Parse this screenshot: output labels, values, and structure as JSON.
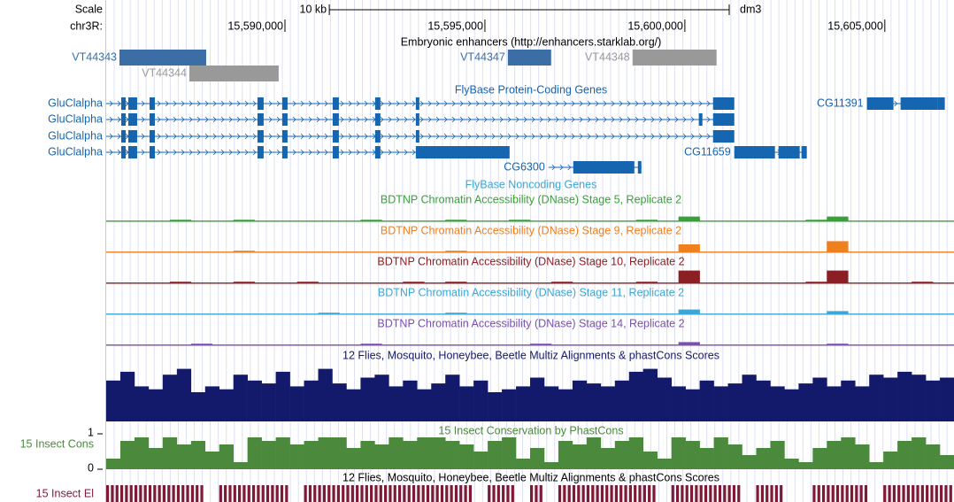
{
  "browser": {
    "xlim": [
      15585530,
      15606730
    ],
    "scale": {
      "label": "Scale",
      "bar": {
        "value": 10000,
        "label": "10 kb"
      },
      "assembly": "dm3"
    },
    "chrom": "chr3R:",
    "xticks": [
      {
        "value": 15590000,
        "label": "15,590,000"
      },
      {
        "value": 15595000,
        "label": "15,595,000"
      },
      {
        "value": 15600000,
        "label": "15,600,000"
      },
      {
        "value": 15605000,
        "label": "15,605,000"
      }
    ],
    "enhancers": {
      "title": "Embryonic enhancers (http://enhancers.starklab.org/)",
      "features": [
        {
          "name": "VT44343",
          "start": 15585862,
          "end": 15588030,
          "color": "#3a6ea5"
        },
        {
          "name": "VT44344",
          "start": 15587609,
          "end": 15589843,
          "color": "#999999"
        },
        {
          "name": "VT44347",
          "start": 15595573,
          "end": 15596656,
          "color": "#3a6ea5"
        },
        {
          "name": "VT44348",
          "start": 15598692,
          "end": 15600793,
          "color": "#999999"
        }
      ]
    },
    "genes": {
      "title": "FlyBase Protein-Coding Genes",
      "color": "#1565b0",
      "features": [
        {
          "name": "GluClalpha",
          "start": 15585530,
          "end": 15601236,
          "exons": [
            [
              15585906,
              15586017
            ],
            [
              15586083,
              15586304
            ],
            [
              15586614,
              15586747
            ],
            [
              15589313,
              15589467
            ],
            [
              15589932,
              15590065
            ],
            [
              15591193,
              15591348
            ],
            [
              15592254,
              15592387
            ],
            [
              15593272,
              15593361
            ],
            [
              15600705,
              15601236
            ]
          ]
        },
        {
          "name": "GluClalpha",
          "start": 15585530,
          "end": 15601236,
          "exons": [
            [
              15585906,
              15586017
            ],
            [
              15586083,
              15586304
            ],
            [
              15586614,
              15586747
            ],
            [
              15589313,
              15589467
            ],
            [
              15589932,
              15590065
            ],
            [
              15591193,
              15591348
            ],
            [
              15592254,
              15592387
            ],
            [
              15593272,
              15593361
            ],
            [
              15600350,
              15600439
            ],
            [
              15600705,
              15601236
            ]
          ]
        },
        {
          "name": "GluClalpha",
          "start": 15585530,
          "end": 15601236,
          "exons": [
            [
              15585906,
              15586017
            ],
            [
              15586083,
              15586304
            ],
            [
              15586614,
              15586747
            ],
            [
              15589313,
              15589467
            ],
            [
              15589932,
              15590065
            ],
            [
              15591193,
              15591348
            ],
            [
              15592254,
              15592387
            ],
            [
              15593272,
              15593361
            ],
            [
              15600705,
              15601236
            ]
          ]
        },
        {
          "name": "GluClalpha",
          "start": 15585530,
          "end": 15595617,
          "exons": [
            [
              15585906,
              15586017
            ],
            [
              15586083,
              15586304
            ],
            [
              15586614,
              15586747
            ],
            [
              15589313,
              15589467
            ],
            [
              15589932,
              15590065
            ],
            [
              15591193,
              15591348
            ],
            [
              15592254,
              15592387
            ],
            [
              15593272,
              15595617
            ]
          ]
        },
        {
          "name": "CG11391",
          "start": 15604553,
          "end": 15606500,
          "exons": [
            [
              15604553,
              15605216
            ],
            [
              15605394,
              15606323
            ],
            [
              15606323,
              15606500
            ]
          ]
        },
        {
          "name": "CG6300",
          "start": 15596590,
          "end": 15598913,
          "exons": [
            [
              15597209,
              15598736
            ],
            [
              15598825,
              15598913
            ]
          ]
        },
        {
          "name": "CG11659",
          "start": 15601236,
          "end": 15603049,
          "exons": [
            [
              15601236,
              15602253
            ],
            [
              15602341,
              15602872
            ],
            [
              15602916,
              15603049
            ]
          ]
        }
      ]
    },
    "noncoding": {
      "title": "FlyBase Noncoding Genes"
    },
    "dnase": [
      {
        "name": "BDTNP Chromatin Accessibility (DNase) Stage 5, Replicate 2",
        "color": "#3aa03a",
        "values": [
          0.05,
          0.05,
          0.05,
          0.1,
          0.05,
          0.05,
          0.1,
          0.05,
          0.05,
          0.05,
          0.05,
          0.05,
          0.1,
          0.05,
          0.05,
          0.05,
          0.1,
          0.05,
          0.05,
          0.1,
          0.05,
          0.05,
          0.05,
          0.05,
          0.05,
          0.1,
          0.05,
          0.3,
          0.05,
          0.05,
          0.05,
          0.05,
          0.05,
          0.1,
          0.3,
          0.05,
          0.05,
          0.05,
          0.05,
          0.05
        ]
      },
      {
        "name": "BDTNP Chromatin Accessibility (DNase) Stage 9, Replicate 2",
        "color": "#f07f1e",
        "values": [
          0.05,
          0.05,
          0.05,
          0.05,
          0.05,
          0.05,
          0.1,
          0.05,
          0.05,
          0.05,
          0.05,
          0.05,
          0.05,
          0.05,
          0.05,
          0.05,
          0.1,
          0.05,
          0.05,
          0.05,
          0.05,
          0.05,
          0.05,
          0.05,
          0.05,
          0.05,
          0.05,
          0.5,
          0.05,
          0.05,
          0.05,
          0.05,
          0.05,
          0.05,
          0.7,
          0.05,
          0.05,
          0.05,
          0.05,
          0.05
        ]
      },
      {
        "name": "BDTNP Chromatin Accessibility (DNase) Stage 10, Replicate 2",
        "color": "#8b1f23",
        "values": [
          0.05,
          0.05,
          0.05,
          0.1,
          0.05,
          0.05,
          0.1,
          0.05,
          0.05,
          0.1,
          0.05,
          0.05,
          0.05,
          0.05,
          0.1,
          0.05,
          0.1,
          0.05,
          0.05,
          0.05,
          0.05,
          0.1,
          0.05,
          0.05,
          0.05,
          0.1,
          0.05,
          0.8,
          0.05,
          0.05,
          0.05,
          0.05,
          0.05,
          0.1,
          0.8,
          0.05,
          0.05,
          0.05,
          0.1,
          0.05
        ]
      },
      {
        "name": "BDTNP Chromatin Accessibility (DNase) Stage 11, Replicate 2",
        "color": "#3ca6d6",
        "values": [
          0.05,
          0.05,
          0.05,
          0.05,
          0.05,
          0.05,
          0.05,
          0.05,
          0.05,
          0.05,
          0.1,
          0.05,
          0.05,
          0.05,
          0.05,
          0.05,
          0.1,
          0.05,
          0.05,
          0.05,
          0.05,
          0.05,
          0.05,
          0.05,
          0.05,
          0.05,
          0.05,
          0.3,
          0.05,
          0.05,
          0.05,
          0.05,
          0.05,
          0.05,
          0.2,
          0.05,
          0.05,
          0.05,
          0.05,
          0.05
        ]
      },
      {
        "name": "BDTNP Chromatin Accessibility (DNase) Stage 14, Replicate 2",
        "color": "#7a4fae",
        "values": [
          0.05,
          0.05,
          0.05,
          0.05,
          0.1,
          0.05,
          0.05,
          0.05,
          0.05,
          0.05,
          0.05,
          0.05,
          0.1,
          0.05,
          0.05,
          0.05,
          0.05,
          0.05,
          0.05,
          0.05,
          0.1,
          0.05,
          0.05,
          0.05,
          0.05,
          0.05,
          0.05,
          0.2,
          0.05,
          0.05,
          0.05,
          0.05,
          0.05,
          0.05,
          0.1,
          0.05,
          0.05,
          0.05,
          0.05,
          0.05
        ]
      }
    ],
    "multiz": {
      "title": "12 Flies, Mosquito, Honeybee, Beetle Multiz Alignments & phastCons Scores",
      "color": "#141a6b",
      "values": [
        0.7,
        0.85,
        0.6,
        0.55,
        0.8,
        0.9,
        0.5,
        0.6,
        0.55,
        0.8,
        0.7,
        0.65,
        0.85,
        0.6,
        0.7,
        0.9,
        0.65,
        0.55,
        0.75,
        0.8,
        0.6,
        0.7,
        0.55,
        0.65,
        0.8,
        0.6,
        0.7,
        0.5,
        0.55,
        0.6,
        0.75,
        0.6,
        0.55,
        0.7,
        0.65,
        0.6,
        0.7,
        0.85,
        0.9,
        0.75,
        0.6,
        0.55,
        0.7,
        0.6,
        0.65,
        0.8,
        0.7,
        0.6,
        0.55,
        0.65,
        0.75,
        0.6,
        0.7,
        0.6,
        0.8,
        0.75,
        0.85,
        0.8,
        0.7,
        0.75
      ]
    },
    "cons": {
      "title": "15 Insect Conservation by PhastCons",
      "label": "15 Insect Cons",
      "color": "#4b8a3c",
      "ylim": [
        0,
        1
      ],
      "yticks": [
        0,
        1
      ],
      "values": [
        0.3,
        0.8,
        0.9,
        0.6,
        0.9,
        0.7,
        0.8,
        0.5,
        0.7,
        0.2,
        0.9,
        0.8,
        0.9,
        0.7,
        0.8,
        0.9,
        0.9,
        0.6,
        0.8,
        0.7,
        0.9,
        0.8,
        0.9,
        0.9,
        0.8,
        0.7,
        0.5,
        0.8,
        0.9,
        0.3,
        0.6,
        0.2,
        0.8,
        0.7,
        0.9,
        0.6,
        0.8,
        0.9,
        0.5,
        0.3,
        0.9,
        0.8,
        0.6,
        0.9,
        0.7,
        0.4,
        0.6,
        0.8,
        0.3,
        0.2,
        0.6,
        0.8,
        0.9,
        0.7,
        0.2,
        0.5,
        0.8,
        0.9,
        0.7,
        0.4
      ]
    },
    "elements": {
      "title": "12 Flies, Mosquito, Honeybee, Beetle Multiz Alignments & phastCons Scores",
      "label": "15 Insect El",
      "color": "#7d1a35",
      "values": [
        1,
        1,
        1,
        1,
        1,
        1,
        1,
        0,
        1,
        1,
        1,
        1,
        1,
        0,
        1,
        1,
        1,
        1,
        1,
        1,
        1,
        1,
        1,
        1,
        1,
        1,
        0,
        1,
        1,
        0,
        1,
        0,
        1,
        1,
        1,
        1,
        1,
        1,
        1,
        0,
        1,
        1,
        1,
        1,
        1,
        0,
        1,
        1,
        0,
        0,
        1,
        1,
        1,
        1,
        0,
        1,
        1,
        1,
        1,
        1
      ]
    }
  }
}
